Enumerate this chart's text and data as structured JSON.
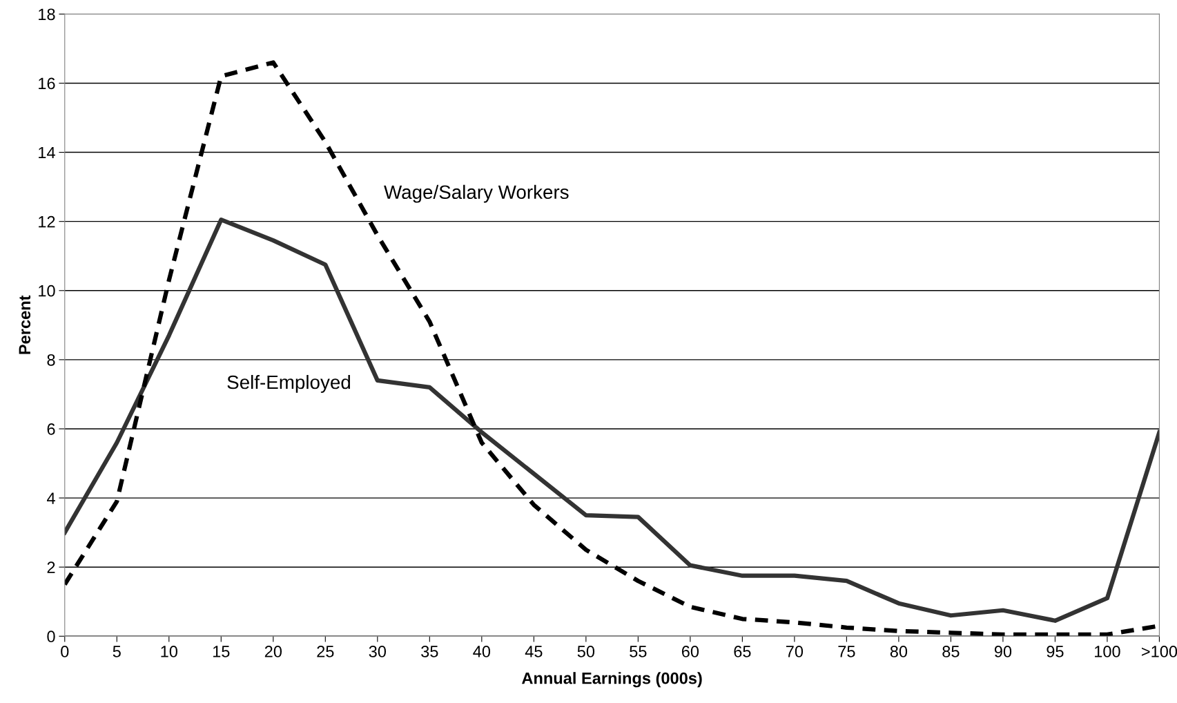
{
  "chart_data": {
    "type": "line",
    "xlabel": "Annual Earnings (000s)",
    "ylabel": "Percent",
    "categories": [
      "0",
      "5",
      "10",
      "15",
      "20",
      "25",
      "30",
      "35",
      "40",
      "45",
      "50",
      "55",
      "60",
      "65",
      "70",
      "75",
      "80",
      "85",
      "90",
      "95",
      "100",
      ">100"
    ],
    "series": [
      {
        "name": "Self-Employed",
        "color": "#333333",
        "line_style": "solid",
        "values": [
          3.0,
          5.6,
          8.7,
          12.05,
          11.45,
          10.75,
          7.4,
          7.2,
          5.9,
          4.7,
          3.5,
          3.45,
          2.05,
          1.75,
          1.75,
          1.6,
          0.95,
          0.6,
          0.75,
          0.45,
          1.1,
          5.9
        ]
      },
      {
        "name": "Wage/Salary Workers",
        "color": "#000000",
        "line_style": "dashed",
        "values": [
          1.5,
          3.9,
          10.3,
          16.2,
          16.6,
          14.3,
          11.6,
          9.1,
          5.6,
          3.8,
          2.5,
          1.6,
          0.85,
          0.5,
          0.4,
          0.25,
          0.15,
          0.1,
          0.05,
          0.05,
          0.05,
          0.3
        ]
      }
    ],
    "ylim": [
      0,
      18
    ],
    "yticks": [
      0,
      2,
      4,
      6,
      8,
      10,
      12,
      14,
      16,
      18
    ],
    "grid": "y",
    "legend": false,
    "marker": "none"
  }
}
